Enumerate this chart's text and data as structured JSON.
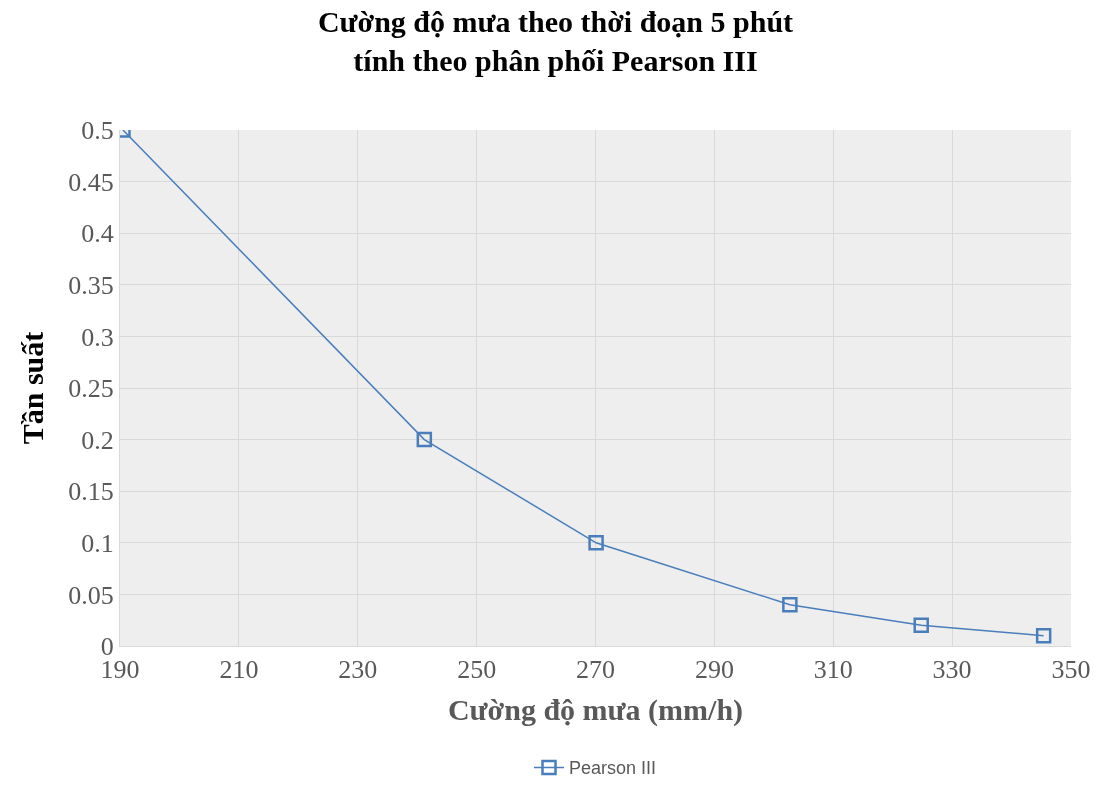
{
  "chart_data": {
    "type": "line",
    "title": "Cường độ mưa theo thời đoạn 5 phút\ntính theo phân phối Pearson III",
    "xlabel": "Cường độ mưa (mm/h)",
    "ylabel": "Tần suất",
    "x": [
      190.5,
      241.2,
      270.1,
      302.7,
      324.8,
      345.4
    ],
    "series": [
      {
        "name": "Pearson III",
        "color": "#4a7ebb",
        "values": [
          0.5,
          0.2,
          0.1,
          0.04,
          0.02,
          0.01
        ]
      }
    ],
    "xlim": [
      190,
      350
    ],
    "xticks": [
      190,
      210,
      230,
      250,
      270,
      290,
      310,
      330,
      350
    ],
    "ylim": [
      0,
      0.5
    ],
    "yticks": [
      0,
      0.05,
      0.1,
      0.15,
      0.2,
      0.25,
      0.3,
      0.35,
      0.4,
      0.45,
      0.5
    ],
    "grid": true,
    "legend": "bottom",
    "marker": "square",
    "line_style": "solid"
  }
}
